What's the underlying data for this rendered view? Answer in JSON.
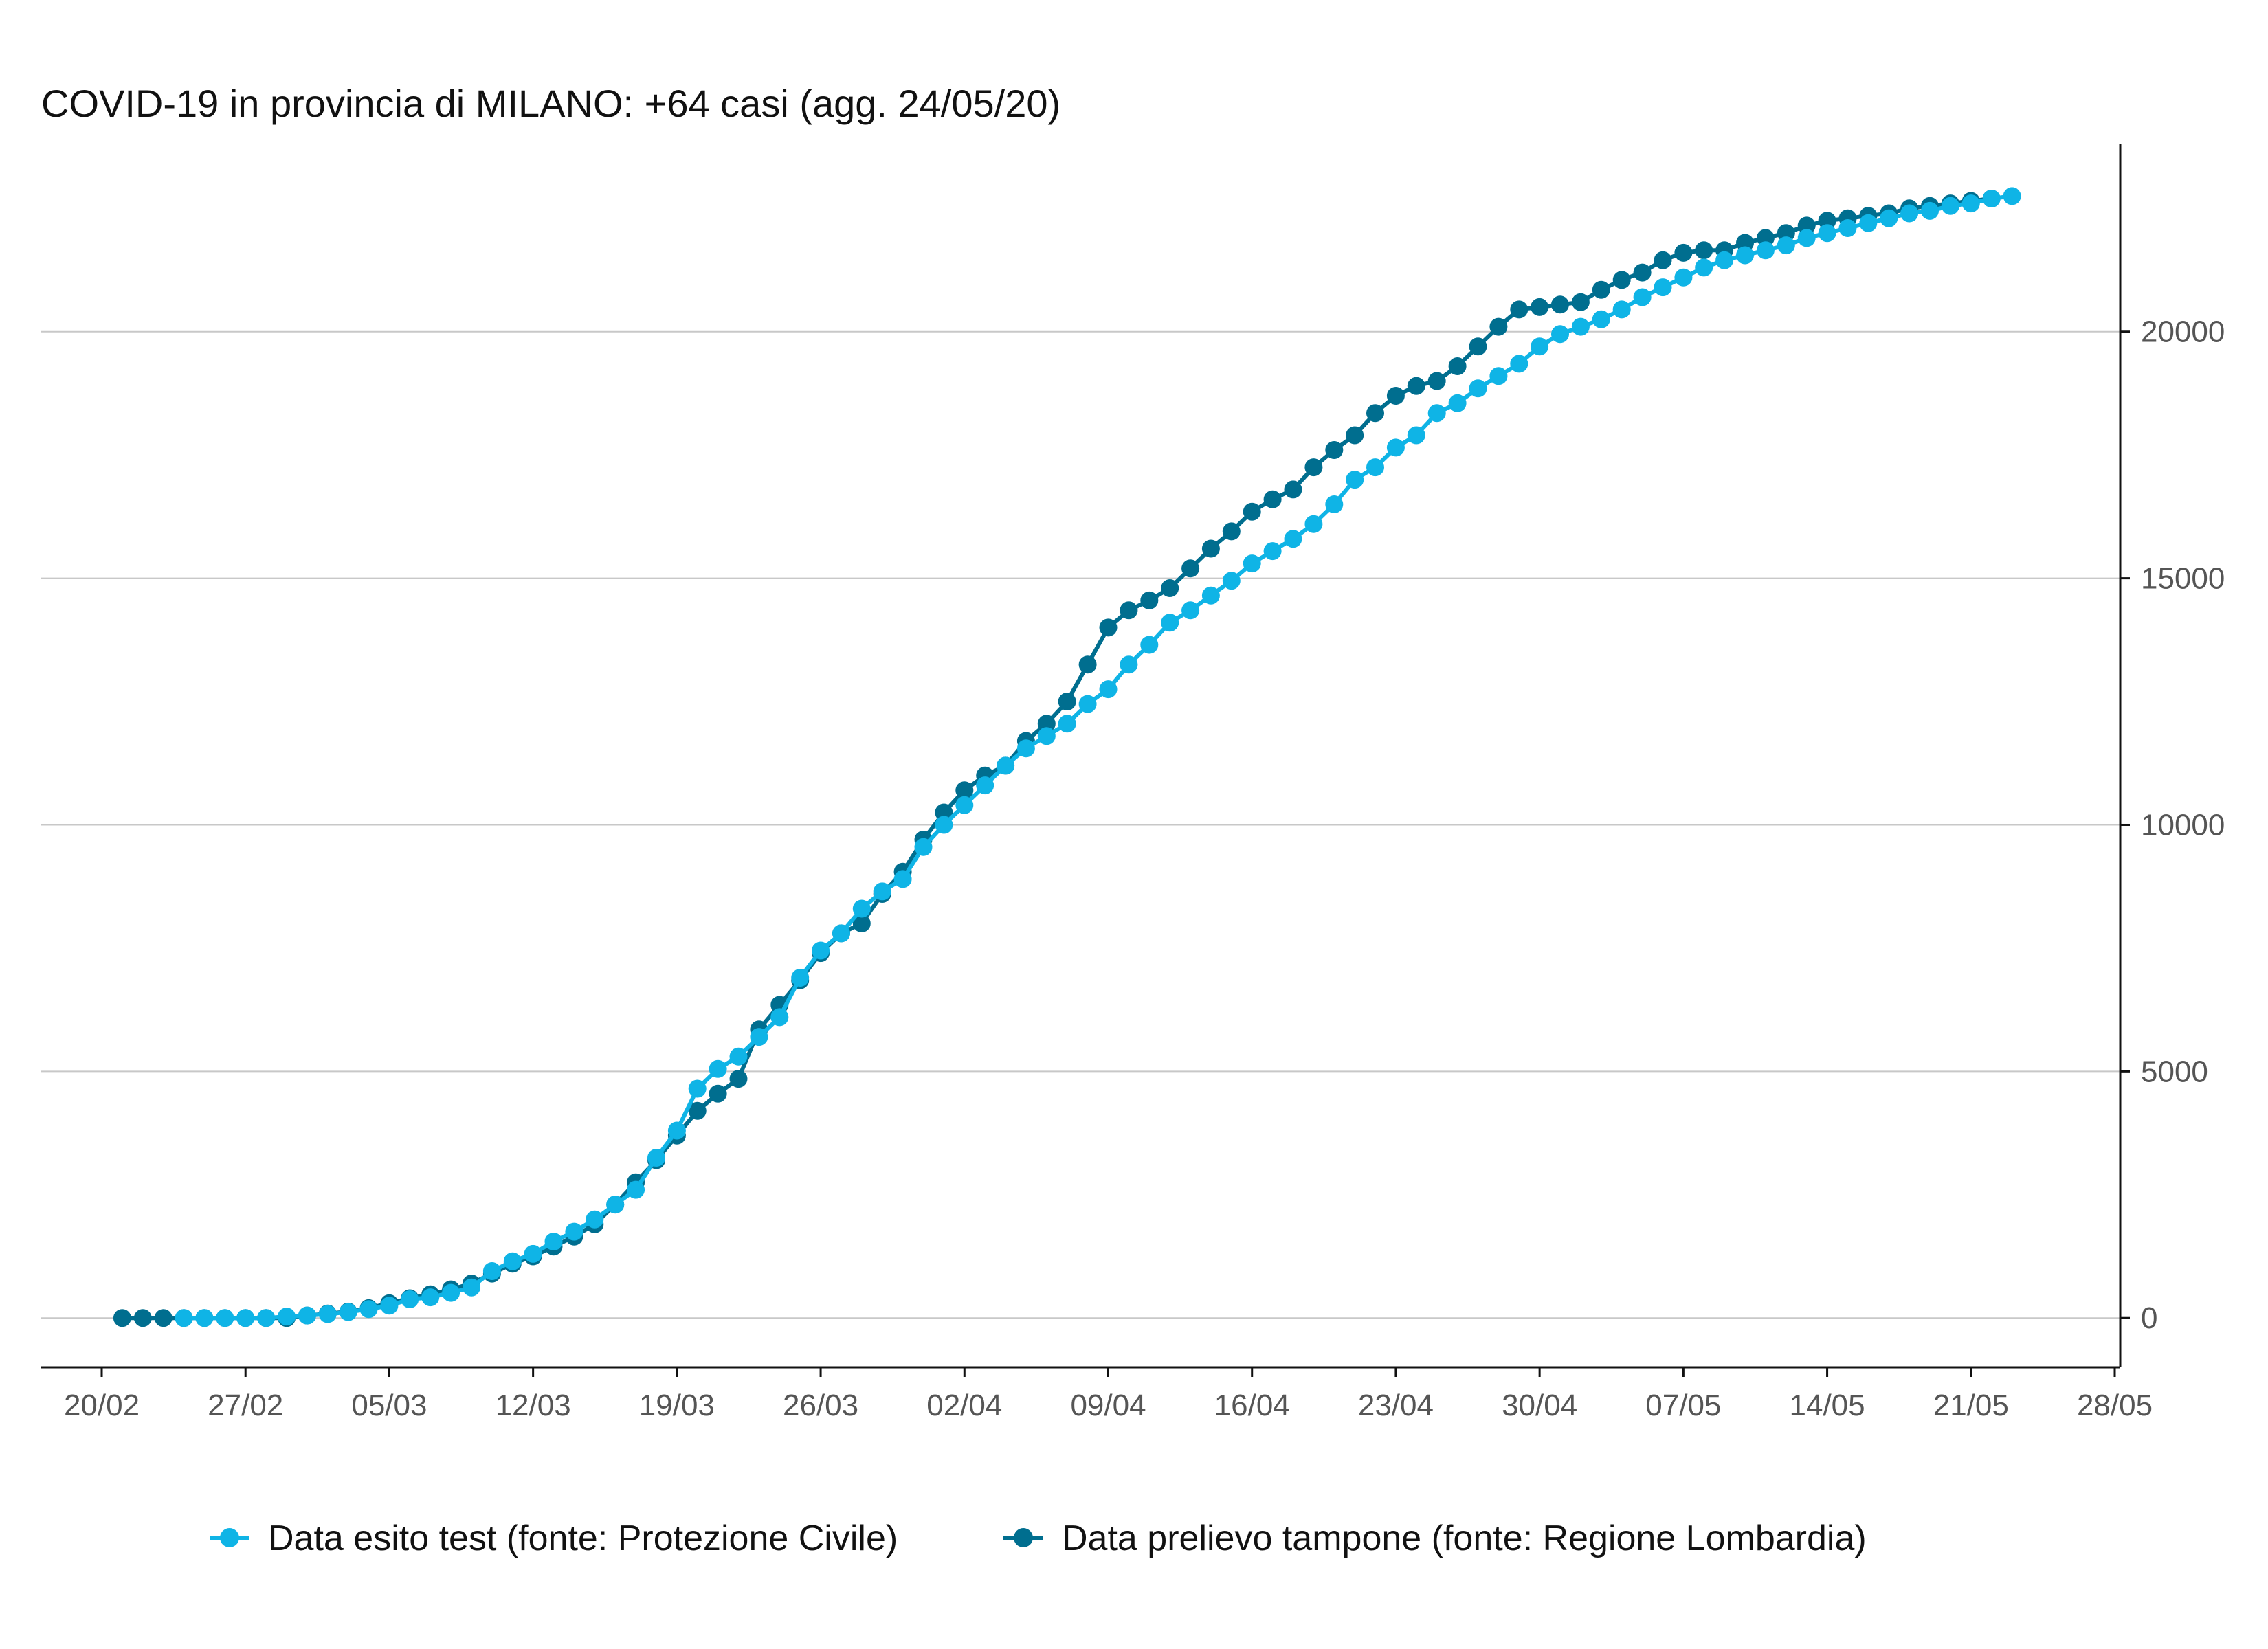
{
  "chart_data": {
    "type": "line",
    "title": "COVID-19 in provincia di MILANO: +64 casi (agg. 24/05/20)",
    "xlabel": "",
    "ylabel": "",
    "x_ticks": [
      "20/02",
      "27/02",
      "05/03",
      "12/03",
      "19/03",
      "26/03",
      "02/04",
      "09/04",
      "16/04",
      "23/04",
      "30/04",
      "07/05",
      "14/05",
      "21/05",
      "28/05"
    ],
    "x_range": [
      "2020-02-20",
      "2020-05-28"
    ],
    "y_ticks": [
      0,
      5000,
      10000,
      15000,
      20000
    ],
    "ylim": [
      -1000,
      23800
    ],
    "y_axis_position": "right",
    "grid": "horizontal",
    "legend_position": "bottom",
    "series": [
      {
        "name": "Data esito test (fonte: Protezione Civile)",
        "color": "#0fb4e6",
        "start_date": "2020-02-24",
        "values": [
          0,
          0,
          0,
          0,
          0,
          30,
          50,
          80,
          120,
          180,
          250,
          380,
          420,
          510,
          620,
          950,
          1150,
          1300,
          1550,
          1750,
          2000,
          2300,
          2600,
          3250,
          3800,
          4650,
          5050,
          5300,
          5700,
          6100,
          6900,
          7450,
          7800,
          8300,
          8650,
          8900,
          9550,
          10000,
          10400,
          10800,
          11200,
          11550,
          11800,
          12050,
          12450,
          12750,
          13250,
          13650,
          14100,
          14350,
          14650,
          14950,
          15300,
          15550,
          15800,
          16100,
          16500,
          17000,
          17250,
          17650,
          17900,
          18350,
          18550,
          18850,
          19100,
          19350,
          19700,
          19950,
          20100,
          20250,
          20450,
          20700,
          20900,
          21100,
          21300,
          21450,
          21550,
          21650,
          21750,
          21900,
          22000,
          22100,
          22200,
          22300,
          22400,
          22450,
          22550,
          22600,
          22700,
          22750
        ]
      },
      {
        "name": "Data prelievo tampone (fonte: Regione Lombardia)",
        "color": "#006e8f",
        "start_date": "2020-02-21",
        "values": [
          0,
          0,
          0,
          0,
          0,
          0,
          0,
          0,
          0,
          50,
          90,
          130,
          200,
          300,
          400,
          480,
          580,
          700,
          900,
          1100,
          1250,
          1450,
          1650,
          1900,
          2300,
          2750,
          3200,
          3700,
          4200,
          4550,
          4850,
          5850,
          6350,
          6850,
          7400,
          7800,
          8000,
          8600,
          9050,
          9700,
          10250,
          10700,
          11000,
          11200,
          11700,
          12050,
          12500,
          13250,
          14000,
          14350,
          14550,
          14800,
          15200,
          15600,
          15950,
          16350,
          16600,
          16800,
          17250,
          17600,
          17900,
          18350,
          18700,
          18900,
          19000,
          19300,
          19700,
          20100,
          20450,
          20500,
          20550,
          20600,
          20850,
          21050,
          21200,
          21450,
          21600,
          21650,
          21650,
          21800,
          21900,
          22000,
          22150,
          22250,
          22300,
          22350,
          22400,
          22500,
          22550,
          22600,
          22650,
          22700
        ]
      }
    ]
  }
}
